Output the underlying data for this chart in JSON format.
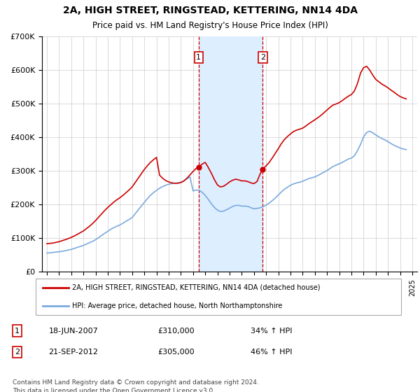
{
  "title": "2A, HIGH STREET, RINGSTEAD, KETTERING, NN14 4DA",
  "subtitle": "Price paid vs. HM Land Registry's House Price Index (HPI)",
  "legend_line1": "2A, HIGH STREET, RINGSTEAD, KETTERING, NN14 4DA (detached house)",
  "legend_line2": "HPI: Average price, detached house, North Northamptonshire",
  "transaction1_date": "18-JUN-2007",
  "transaction1_price": "£310,000",
  "transaction1_hpi": "34% ↑ HPI",
  "transaction2_date": "21-SEP-2012",
  "transaction2_price": "£305,000",
  "transaction2_hpi": "46% ↑ HPI",
  "footnote": "Contains HM Land Registry data © Crown copyright and database right 2024.\nThis data is licensed under the Open Government Licence v3.0.",
  "house_color": "#cc0000",
  "hpi_color": "#7aaadd",
  "highlight_color": "#ddeeff",
  "transaction1_x": 2007.46,
  "transaction2_x": 2012.72,
  "ylim_min": 0,
  "ylim_max": 700000,
  "xlim_min": 1994.6,
  "xlim_max": 2025.4,
  "yticks": [
    0,
    100000,
    200000,
    300000,
    400000,
    500000,
    600000,
    700000
  ],
  "ytick_labels": [
    "£0",
    "£100K",
    "£200K",
    "£300K",
    "£400K",
    "£500K",
    "£600K",
    "£700K"
  ],
  "xticks": [
    1995,
    1996,
    1997,
    1998,
    1999,
    2000,
    2001,
    2002,
    2003,
    2004,
    2005,
    2006,
    2007,
    2008,
    2009,
    2010,
    2011,
    2012,
    2013,
    2014,
    2015,
    2016,
    2017,
    2018,
    2019,
    2020,
    2021,
    2022,
    2023,
    2024,
    2025
  ],
  "hpi_data_x": [
    1995.0,
    1995.25,
    1995.5,
    1995.75,
    1996.0,
    1996.25,
    1996.5,
    1996.75,
    1997.0,
    1997.25,
    1997.5,
    1997.75,
    1998.0,
    1998.25,
    1998.5,
    1998.75,
    1999.0,
    1999.25,
    1999.5,
    1999.75,
    2000.0,
    2000.25,
    2000.5,
    2000.75,
    2001.0,
    2001.25,
    2001.5,
    2001.75,
    2002.0,
    2002.25,
    2002.5,
    2002.75,
    2003.0,
    2003.25,
    2003.5,
    2003.75,
    2004.0,
    2004.25,
    2004.5,
    2004.75,
    2005.0,
    2005.25,
    2005.5,
    2005.75,
    2006.0,
    2006.25,
    2006.5,
    2006.75,
    2007.0,
    2007.25,
    2007.5,
    2007.75,
    2008.0,
    2008.25,
    2008.5,
    2008.75,
    2009.0,
    2009.25,
    2009.5,
    2009.75,
    2010.0,
    2010.25,
    2010.5,
    2010.75,
    2011.0,
    2011.25,
    2011.5,
    2011.75,
    2012.0,
    2012.25,
    2012.5,
    2012.75,
    2013.0,
    2013.25,
    2013.5,
    2013.75,
    2014.0,
    2014.25,
    2014.5,
    2014.75,
    2015.0,
    2015.25,
    2015.5,
    2015.75,
    2016.0,
    2016.25,
    2016.5,
    2016.75,
    2017.0,
    2017.25,
    2017.5,
    2017.75,
    2018.0,
    2018.25,
    2018.5,
    2018.75,
    2019.0,
    2019.25,
    2019.5,
    2019.75,
    2020.0,
    2020.25,
    2020.5,
    2020.75,
    2021.0,
    2021.25,
    2021.5,
    2021.75,
    2022.0,
    2022.25,
    2022.5,
    2022.75,
    2023.0,
    2023.25,
    2023.5,
    2023.75,
    2024.0,
    2024.25,
    2024.5
  ],
  "hpi_data_y": [
    55000,
    56000,
    57000,
    58000,
    59000,
    60500,
    62000,
    64000,
    66000,
    69000,
    72000,
    75000,
    78000,
    82000,
    86000,
    90000,
    95000,
    101000,
    108000,
    114000,
    120000,
    126000,
    131000,
    135000,
    139000,
    144000,
    150000,
    155000,
    161000,
    172000,
    184000,
    195000,
    206000,
    217000,
    227000,
    235000,
    242000,
    248000,
    253000,
    257000,
    260000,
    262000,
    263000,
    264000,
    266000,
    270000,
    276000,
    282000,
    240000,
    243000,
    242000,
    236000,
    227000,
    215000,
    202000,
    191000,
    183000,
    179000,
    180000,
    184000,
    189000,
    194000,
    197000,
    197000,
    195000,
    195000,
    194000,
    190000,
    187000,
    188000,
    190000,
    193000,
    198000,
    204000,
    211000,
    219000,
    228000,
    237000,
    245000,
    251000,
    257000,
    261000,
    264000,
    266000,
    269000,
    273000,
    277000,
    279000,
    282000,
    286000,
    291000,
    296000,
    301000,
    307000,
    313000,
    317000,
    321000,
    325000,
    330000,
    335000,
    338000,
    345000,
    360000,
    379000,
    401000,
    414000,
    418000,
    413000,
    407000,
    401000,
    396000,
    392000,
    387000,
    381000,
    376000,
    372000,
    368000,
    365000,
    363000
  ],
  "house_data_x": [
    1995.0,
    1995.25,
    1995.5,
    1995.75,
    1996.0,
    1996.25,
    1996.5,
    1996.75,
    1997.0,
    1997.25,
    1997.5,
    1997.75,
    1998.0,
    1998.25,
    1998.5,
    1998.75,
    1999.0,
    1999.25,
    1999.5,
    1999.75,
    2000.0,
    2000.25,
    2000.5,
    2000.75,
    2001.0,
    2001.25,
    2001.5,
    2001.75,
    2002.0,
    2002.25,
    2002.5,
    2002.75,
    2003.0,
    2003.25,
    2003.5,
    2003.75,
    2004.0,
    2004.25,
    2004.5,
    2004.75,
    2005.0,
    2005.25,
    2005.5,
    2005.75,
    2006.0,
    2006.25,
    2006.5,
    2006.75,
    2007.0,
    2007.25,
    2007.46,
    2007.75,
    2008.0,
    2008.25,
    2008.5,
    2008.75,
    2009.0,
    2009.25,
    2009.5,
    2009.75,
    2010.0,
    2010.25,
    2010.5,
    2010.75,
    2011.0,
    2011.25,
    2011.5,
    2011.75,
    2012.0,
    2012.25,
    2012.5,
    2012.72,
    2013.0,
    2013.25,
    2013.5,
    2013.75,
    2014.0,
    2014.25,
    2014.5,
    2014.75,
    2015.0,
    2015.25,
    2015.5,
    2015.75,
    2016.0,
    2016.25,
    2016.5,
    2016.75,
    2017.0,
    2017.25,
    2017.5,
    2017.75,
    2018.0,
    2018.25,
    2018.5,
    2018.75,
    2019.0,
    2019.25,
    2019.5,
    2019.75,
    2020.0,
    2020.25,
    2020.5,
    2020.75,
    2021.0,
    2021.25,
    2021.5,
    2021.75,
    2022.0,
    2022.25,
    2022.5,
    2022.75,
    2023.0,
    2023.25,
    2023.5,
    2023.75,
    2024.0,
    2024.25,
    2024.5
  ],
  "house_data_y": [
    83000,
    84000,
    85000,
    87000,
    89000,
    92000,
    95000,
    98000,
    102000,
    106000,
    111000,
    116000,
    121000,
    128000,
    135000,
    143000,
    152000,
    162000,
    172000,
    182000,
    191000,
    199000,
    207000,
    214000,
    220000,
    227000,
    235000,
    243000,
    252000,
    265000,
    278000,
    291000,
    304000,
    315000,
    325000,
    333000,
    340000,
    287000,
    278000,
    271000,
    267000,
    264000,
    263000,
    263000,
    265000,
    270000,
    278000,
    288000,
    298000,
    307000,
    310000,
    320000,
    325000,
    310000,
    293000,
    274000,
    258000,
    252000,
    254000,
    260000,
    267000,
    272000,
    275000,
    273000,
    270000,
    270000,
    268000,
    264000,
    262000,
    268000,
    290000,
    305000,
    315000,
    325000,
    338000,
    352000,
    366000,
    381000,
    393000,
    402000,
    410000,
    417000,
    421000,
    424000,
    427000,
    433000,
    440000,
    446000,
    452000,
    458000,
    465000,
    473000,
    481000,
    489000,
    496000,
    499000,
    503000,
    509000,
    516000,
    522000,
    527000,
    538000,
    560000,
    591000,
    607000,
    611000,
    600000,
    585000,
    572000,
    565000,
    558000,
    553000,
    547000,
    540000,
    534000,
    527000,
    521000,
    517000,
    514000
  ]
}
